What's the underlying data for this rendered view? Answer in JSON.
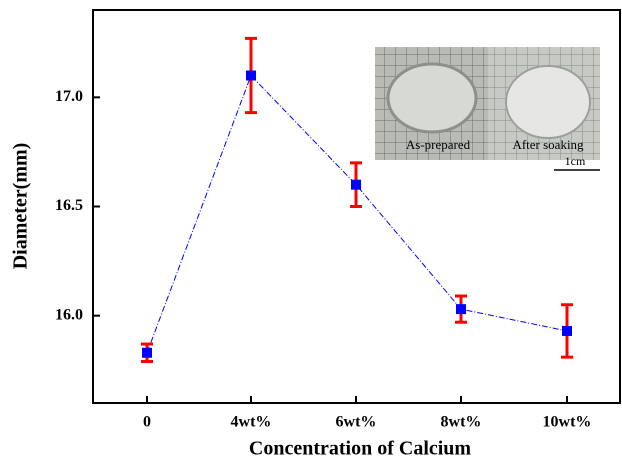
{
  "chart_data": {
    "type": "line",
    "x_label": "Concentration of Calcium",
    "y_label": "Diameter(mm)",
    "categories": [
      "0",
      "4wt%",
      "6wt%",
      "8wt%",
      "10wt%"
    ],
    "series": [
      {
        "color": "#0000ff",
        "error_color": "#ff0000",
        "values": [
          15.83,
          17.1,
          16.6,
          16.03,
          15.93
        ],
        "errors": [
          0.04,
          0.17,
          0.1,
          0.06,
          0.12
        ]
      }
    ],
    "ylim": [
      15.6,
      17.4
    ],
    "yticks": [
      {
        "value": 16,
        "label": "16.0"
      },
      16.5,
      {
        "value": 17,
        "label": "17.0"
      }
    ],
    "annotations": [
      "As-prepared",
      "After soaking",
      "1cm"
    ]
  }
}
